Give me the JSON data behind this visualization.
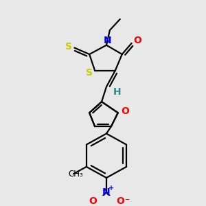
{
  "background_color": "#e8e8e8",
  "figsize": [
    3.0,
    3.0
  ],
  "dpi": 100,
  "colors": {
    "S": "#cccc00",
    "N": "#0000ff",
    "O": "#ff0000",
    "C": "#000000",
    "H": "#2e8b8b",
    "default": "#000000"
  },
  "lw": 1.6
}
